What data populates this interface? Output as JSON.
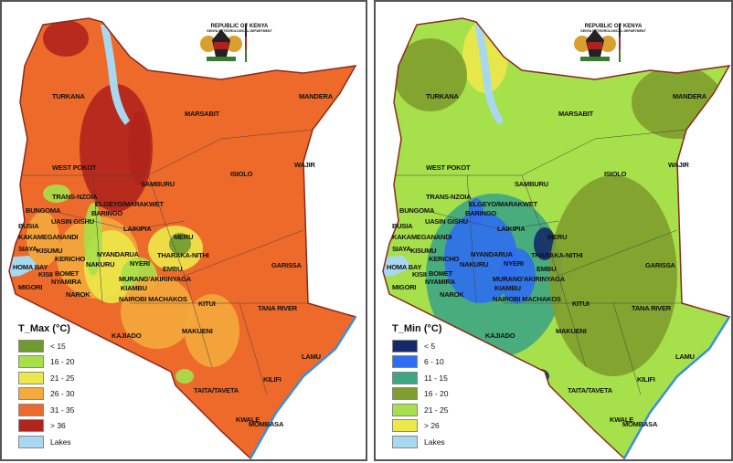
{
  "panels": [
    {
      "id": "tmax",
      "logo": {
        "line1": "REPUBLIC OF KENYA",
        "line2": "KENYA METEOROLOGICAL DEPARTMENT"
      },
      "legend": {
        "title": "T_Max (°C)",
        "items": [
          {
            "label": "< 15",
            "color": "#6f9a2e"
          },
          {
            "label": "16 - 20",
            "color": "#a6e04a"
          },
          {
            "label": "21 - 25",
            "color": "#ece84a"
          },
          {
            "label": "26 - 30",
            "color": "#f4aa3c"
          },
          {
            "label": "31 - 35",
            "color": "#ee6a2a"
          },
          {
            "label": "> 36",
            "color": "#b0241c"
          },
          {
            "label": "Lakes",
            "color": "#a8d8ef"
          }
        ]
      },
      "base_color": "#ee6a2a"
    },
    {
      "id": "tmin",
      "logo": {
        "line1": "REPUBLIC OF KENYA",
        "line2": "KENYA METEOROLOGICAL DEPARTMENT"
      },
      "legend": {
        "title": "T_Min (°C)",
        "items": [
          {
            "label": "< 5",
            "color": "#142a6a"
          },
          {
            "label": "6 - 10",
            "color": "#2f6ef0"
          },
          {
            "label": "11 - 15",
            "color": "#3fa683"
          },
          {
            "label": "16 - 20",
            "color": "#7f9e2e"
          },
          {
            "label": "21 - 25",
            "color": "#a6e04a"
          },
          {
            "label": "> 26",
            "color": "#ece84a"
          },
          {
            "label": "Lakes",
            "color": "#a8d8ef"
          }
        ]
      },
      "base_color": "#a6e04a"
    }
  ],
  "counties": [
    "TURKANA",
    "MARSABIT",
    "MANDERA",
    "WAJIR",
    "WEST POKOT",
    "SAMBURU",
    "ISIOLO",
    "TRANS-NZOIA",
    "ELGEYO/MARAKWET",
    "BUNGOMA",
    "BARINGO",
    "UASIN GISHU",
    "BUSIA",
    "KAKAMEGANANDI",
    "LAIKIPIA",
    "MERU",
    "SIAYA",
    "KISUMU",
    "NYANDARUA",
    "THARAKA-NITHI",
    "HOMA BAY",
    "KERICHO",
    "NAKURU",
    "NYERI",
    "EMBU",
    "KISII",
    "BOMET",
    "NYAMIRA",
    "MURANG'AKIRINYAGA",
    "MIGORI",
    "KIAMBU",
    "NAROK",
    "NAIROBI MACHAKOS",
    "GARISSA",
    "KITUI",
    "TANA RIVER",
    "MAKUENI",
    "KAJIADO",
    "LAMU",
    "KILIFI",
    "TAITA/TAVETA",
    "KWALE",
    "MOMBASA"
  ]
}
